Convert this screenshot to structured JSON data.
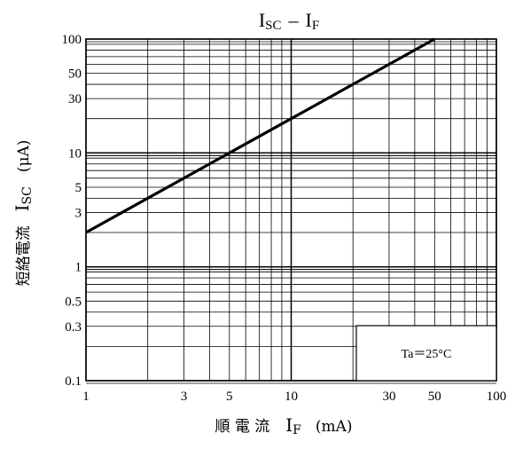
{
  "chart_data": {
    "type": "line",
    "title": {
      "a": "I",
      "a_sub": "SC",
      "dash": "–",
      "b": "I",
      "b_sub": "F"
    },
    "xlabel": {
      "jp": "順 電 流",
      "sym": "I",
      "sym_sub": "F",
      "unit": "(mA)"
    },
    "ylabel": {
      "jp": "短絡電流",
      "sym": "I",
      "sym_sub": "SC",
      "unit": "(μA)"
    },
    "x_scale": "log",
    "y_scale": "log",
    "xlim": [
      1,
      100
    ],
    "ylim": [
      0.1,
      100
    ],
    "x_ticks": [
      "1",
      "3",
      "5",
      "10",
      "30",
      "50",
      "100"
    ],
    "y_ticks": [
      "0.1",
      "0.3",
      "0.5",
      "1",
      "3",
      "5",
      "10",
      "30",
      "50",
      "100"
    ],
    "grid": true,
    "series": [
      {
        "x": [
          1,
          10,
          50
        ],
        "y": [
          2.0,
          20,
          100
        ]
      }
    ],
    "annotation": "Ta＝25°C",
    "annotation_position": "bottom-right"
  }
}
